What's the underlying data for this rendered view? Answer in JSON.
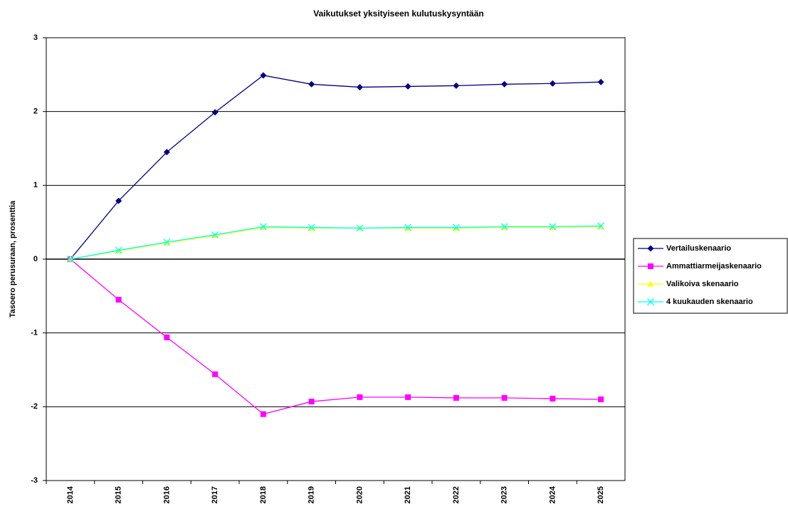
{
  "chart_data": {
    "type": "line",
    "title": "Vaikutukset yksityiseen kulutuskysyntään",
    "y_label": "Tasoero perusuraan, prosenttia",
    "categories": [
      "2014",
      "2015",
      "2016",
      "2017",
      "2018",
      "2019",
      "2020",
      "2021",
      "2022",
      "2023",
      "2024",
      "2025"
    ],
    "series": [
      {
        "name": "Vertailuskenaario",
        "color": "#000080",
        "marker": "diamond",
        "values": [
          0,
          0.79,
          1.45,
          1.99,
          2.49,
          2.37,
          2.33,
          2.34,
          2.35,
          2.37,
          2.38,
          2.4
        ]
      },
      {
        "name": "Ammattiarmeijaskenaario",
        "color": "#ff00ff",
        "marker": "square",
        "values": [
          0,
          -0.55,
          -1.06,
          -1.56,
          -2.1,
          -1.93,
          -1.87,
          -1.87,
          -1.88,
          -1.88,
          -1.89,
          -1.9
        ]
      },
      {
        "name": "Valikoiva skenaario",
        "color": "#ffff00",
        "marker": "triangle",
        "values": [
          0,
          0.11,
          0.22,
          0.32,
          0.43,
          0.42,
          0.42,
          0.42,
          0.42,
          0.43,
          0.43,
          0.44
        ]
      },
      {
        "name": "4 kuukauden skenaario",
        "color": "#00ffff",
        "marker": "x",
        "values": [
          0,
          0.12,
          0.23,
          0.33,
          0.44,
          0.43,
          0.42,
          0.43,
          0.43,
          0.44,
          0.44,
          0.45
        ]
      }
    ],
    "ylim": [
      -3,
      3
    ],
    "yticks": [
      -3,
      -2,
      -1,
      0,
      1,
      2,
      3
    ],
    "grid": true,
    "legend": "right"
  }
}
